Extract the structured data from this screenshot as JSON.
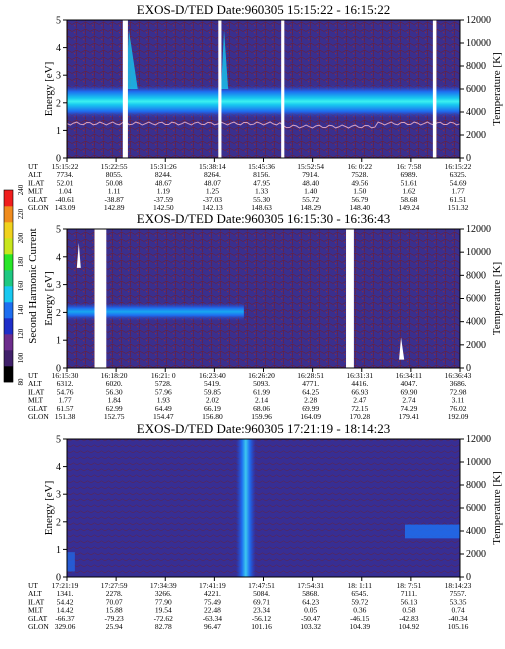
{
  "chart_data": [
    {
      "type": "heatmap",
      "title": "EXOS-D/TED   Date:960305   15:15:22 - 16:15:22",
      "ylabel": "Energy [eV]",
      "y2label": "Temperature [K]",
      "ylim": [
        0,
        5
      ],
      "y2lim": [
        0,
        12000
      ],
      "yticks": [
        "0",
        "1",
        "2",
        "3",
        "4",
        "5"
      ],
      "y2ticks": [
        "0",
        "2000",
        "4000",
        "6000",
        "8000",
        "10000",
        "12000"
      ],
      "band_energy_ev": [
        1.6,
        2.5
      ],
      "temperature_k_approx": 3000,
      "data_gaps_fraction_of_span": [
        [
          0.142,
          0.155
        ],
        [
          0.385,
          0.393
        ],
        [
          0.545,
          0.553
        ],
        [
          0.931,
          0.94
        ]
      ],
      "table": {
        "row_labels": [
          "UT",
          "ALT",
          "ILAT",
          "MLT",
          "GLAT",
          "GLON"
        ],
        "columns": [
          [
            "15:15:22",
            "7734.",
            "52.01",
            "1.04",
            "-40.61",
            "143.09"
          ],
          [
            "15:22:55",
            "8055.",
            "50.08",
            "1.11",
            "-38.87",
            "142.89"
          ],
          [
            "15:31:26",
            "8244.",
            "48.67",
            "1.19",
            "-37.59",
            "142.50"
          ],
          [
            "15:38:14",
            "8264.",
            "48.07",
            "1.25",
            "-37.03",
            "142.13"
          ],
          [
            "15:45:36",
            "8156.",
            "47.95",
            "1.33",
            "55.30",
            "148.63"
          ],
          [
            "15:52:54",
            "7914.",
            "48.40",
            "1.40",
            "55.72",
            "148.29"
          ],
          [
            "16: 0:22",
            "7528.",
            "49.56",
            "1.50",
            "56.79",
            "148.40"
          ],
          [
            "16: 7:58",
            "6989.",
            "51.61",
            "1.62",
            "58.68",
            "149.24"
          ],
          [
            "16:15:22",
            "6325.",
            "54.69",
            "1.77",
            "61.51",
            "151.32"
          ]
        ]
      }
    },
    {
      "type": "heatmap",
      "title": "EXOS-D/TED   Date:960305   16:15:30 - 16:36:43",
      "ylabel": "Energy [eV]",
      "y2label": "Temperature [K]",
      "ylim": [
        0,
        5
      ],
      "y2lim": [
        0,
        12000
      ],
      "yticks": [
        "0",
        "1",
        "2",
        "3",
        "4",
        "5"
      ],
      "y2ticks": [
        "0",
        "2000",
        "4000",
        "6000",
        "8000",
        "10000",
        "12000"
      ],
      "data_gaps_fraction_of_span": [
        [
          0.07,
          0.1
        ],
        [
          0.71,
          0.73
        ]
      ],
      "table": {
        "row_labels": [
          "UT",
          "ALT",
          "ILAT",
          "MLT",
          "GLAT",
          "GLON"
        ],
        "columns": [
          [
            "16:15:30",
            "6312.",
            "54.76",
            "1.77",
            "61.57",
            "151.38"
          ],
          [
            "16:18:20",
            "6020.",
            "56.30",
            "1.84",
            "62.99",
            "152.75"
          ],
          [
            "16:21: 0",
            "5728.",
            "57.96",
            "1.93",
            "64.49",
            "154.47"
          ],
          [
            "16:23:40",
            "5419.",
            "59.85",
            "2.02",
            "66.19",
            "156.80"
          ],
          [
            "16:26:20",
            "5093.",
            "61.99",
            "2.14",
            "68.06",
            "159.96"
          ],
          [
            "16:28:51",
            "4771.",
            "64.25",
            "2.28",
            "69.99",
            "164.09"
          ],
          [
            "16:31:31",
            "4416.",
            "66.93",
            "2.47",
            "72.15",
            "170.28"
          ],
          [
            "16:34:11",
            "4047.",
            "69.90",
            "2.74",
            "74.29",
            "179.41"
          ],
          [
            "16:36:43",
            "3686.",
            "72.98",
            "3.11",
            "76.02",
            "192.09"
          ]
        ]
      }
    },
    {
      "type": "heatmap",
      "title": "EXOS-D/TED   Date:960305   17:21:19 - 18:14:23",
      "ylabel": "Energy [eV]",
      "y2label": "Temperature [K]",
      "ylim": [
        0,
        5
      ],
      "y2lim": [
        0,
        12000
      ],
      "yticks": [
        "0",
        "1",
        "2",
        "3",
        "4",
        "5"
      ],
      "y2ticks": [
        "0",
        "2000",
        "4000",
        "6000",
        "8000",
        "10000",
        "12000"
      ],
      "table": {
        "row_labels": [
          "UT",
          "ALT",
          "ILAT",
          "MLT",
          "GLAT",
          "GLON"
        ],
        "columns": [
          [
            "17:21:19",
            "1341.",
            "54.42",
            "14.42",
            "-66.37",
            "329.06"
          ],
          [
            "17:27:59",
            "2278.",
            "70.07",
            "15.88",
            "-79.23",
            "25.94"
          ],
          [
            "17:34:39",
            "3266.",
            "77.90",
            "19.54",
            "-72.62",
            "82.78"
          ],
          [
            "17:41:19",
            "4221.",
            "75.49",
            "22.48",
            "-63.34",
            "96.47"
          ],
          [
            "17:47:51",
            "5084.",
            "69.71",
            "23.34",
            "-56.12",
            "101.16"
          ],
          [
            "17:54:31",
            "5868.",
            "64.23",
            "0.05",
            "-50.47",
            "103.32"
          ],
          [
            "18: 1:11",
            "6545.",
            "59.72",
            "0.36",
            "-46.15",
            "104.39"
          ],
          [
            "18: 7:51",
            "7111.",
            "56.13",
            "0.58",
            "-42.83",
            "104.92"
          ],
          [
            "18:14:23",
            "7557.",
            "53.35",
            "0.74",
            "-40.34",
            "105.16"
          ]
        ]
      }
    }
  ],
  "colorbar": {
    "label": "Second Harmonic Current",
    "ticks": [
      "80",
      "100",
      "120",
      "140",
      "160",
      "180",
      "200",
      "220",
      "240"
    ],
    "colors": [
      "#000000",
      "#40206a",
      "#6c2c8c",
      "#1e2ec8",
      "#1e6ef0",
      "#18c8f0",
      "#1ec882",
      "#28e628",
      "#c8e61e",
      "#f0d21e",
      "#f08c1e",
      "#f01e1e"
    ]
  }
}
